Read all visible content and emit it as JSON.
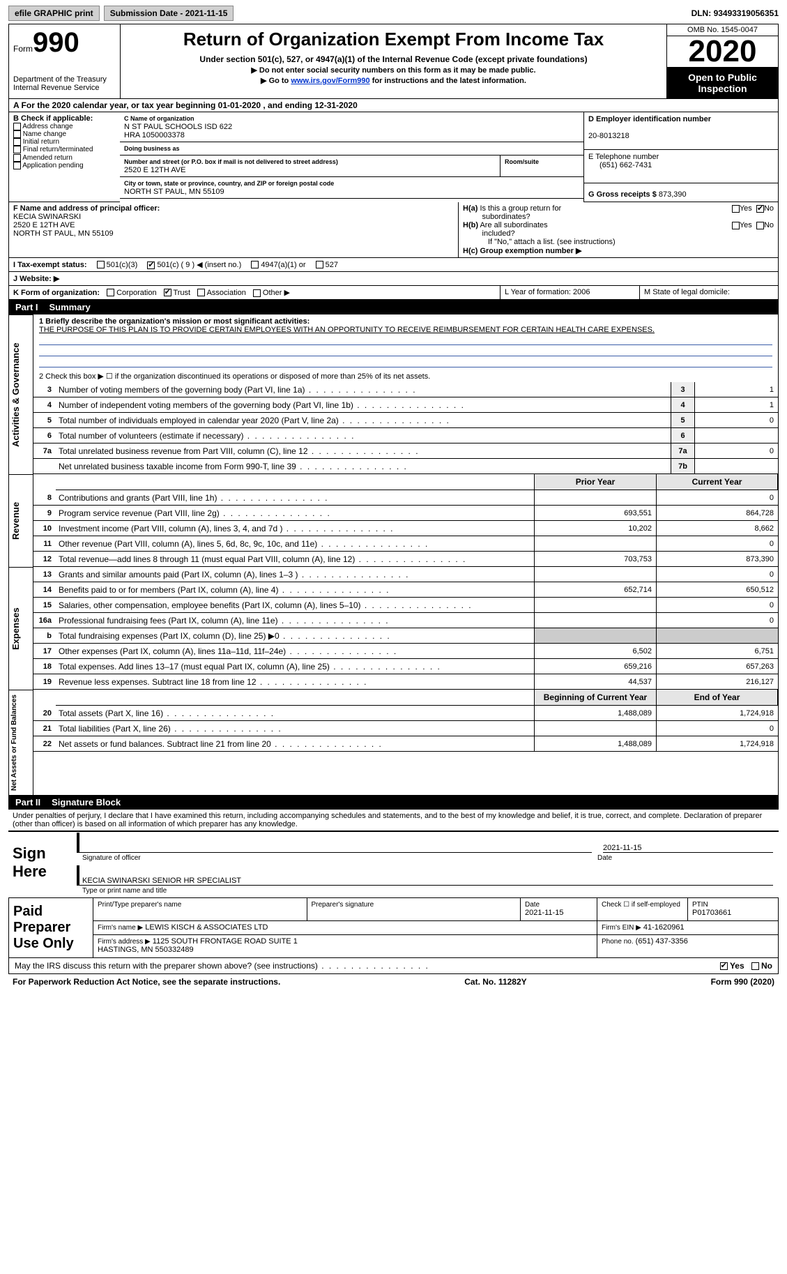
{
  "top": {
    "efile": "efile GRAPHIC print",
    "subdate_lbl": "Submission Date - ",
    "subdate": "2021-11-15",
    "dln_lbl": "DLN: ",
    "dln": "93493319056351"
  },
  "hdr": {
    "form": "Form",
    "num": "990",
    "dept": "Department of the Treasury\nInternal Revenue Service",
    "title": "Return of Organization Exempt From Income Tax",
    "sub": "Under section 501(c), 527, or 4947(a)(1) of the Internal Revenue Code (except private foundations)",
    "note1": "▶ Do not enter social security numbers on this form as it may be made public.",
    "note2_pre": "▶ Go to ",
    "note2_link": "www.irs.gov/Form990",
    "note2_post": " for instructions and the latest information.",
    "omb": "OMB No. 1545-0047",
    "year": "2020",
    "pub": "Open to Public Inspection"
  },
  "rowA": "A For the 2020 calendar year, or tax year beginning 01-01-2020    , and ending 12-31-2020",
  "boxB": {
    "label": "B Check if applicable:",
    "items": [
      "Address change",
      "Name change",
      "Initial return",
      "Final return/terminated",
      "Amended return",
      "Application pending"
    ]
  },
  "boxC": {
    "name_lbl": "C Name of organization",
    "name": "N ST PAUL SCHOOLS ISD 622\nHRA 1050003378",
    "dba_lbl": "Doing business as",
    "dba": "",
    "street_lbl": "Number and street (or P.O. box if mail is not delivered to street address)",
    "street": "2520 E 12TH AVE",
    "room_lbl": "Room/suite",
    "city_lbl": "City or town, state or province, country, and ZIP or foreign postal code",
    "city": "NORTH ST PAUL, MN  55109"
  },
  "boxDEG": {
    "d_lbl": "D Employer identification number",
    "d": "20-8013218",
    "e_lbl": "E Telephone number",
    "e": "(651) 662-7431",
    "g_lbl": "G Gross receipts $ ",
    "g": "873,390"
  },
  "rowF": {
    "f_lbl": "F  Name and address of principal officer:",
    "f": "KECIA SWINARSKI\n2520 E 12TH AVE\nNORTH ST PAUL, MN  55109",
    "ha": "H(a)  Is this a group return for subordinates?",
    "hb": "H(b)  Are all subordinates included?",
    "hb_note": "If \"No,\" attach a list. (see instructions)",
    "hc": "H(c)  Group exemption number ▶",
    "yes": "Yes",
    "no": "No"
  },
  "rowI": {
    "lbl": "I   Tax-exempt status:",
    "o1": "501(c)(3)",
    "o2": "501(c) ( 9 ) ◀ (insert no.)",
    "o3": "4947(a)(1) or",
    "o4": "527"
  },
  "rowJ": {
    "lbl": "J   Website: ▶"
  },
  "rowK": {
    "k": "K Form of organization:",
    "opts": [
      "Corporation",
      "Trust",
      "Association",
      "Other ▶"
    ],
    "l": "L Year of formation: 2006",
    "m": "M State of legal domicile:"
  },
  "partI": {
    "num": "Part I",
    "title": "Summary",
    "q1": "1  Briefly describe the organization's mission or most significant activities:",
    "q1v": "THE PURPOSE OF THIS PLAN IS TO PROVIDE CERTAIN EMPLOYEES WITH AN OPPORTUNITY TO RECEIVE REIMBURSEMENT FOR CERTAIN HEALTH CARE EXPENSES.",
    "q2": "2   Check this box ▶ ☐  if the organization discontinued its operations or disposed of more than 25% of its net assets."
  },
  "gov_lines": [
    {
      "n": "3",
      "t": "Number of voting members of the governing body (Part VI, line 1a)",
      "b": "3",
      "v": "1"
    },
    {
      "n": "4",
      "t": "Number of independent voting members of the governing body (Part VI, line 1b)",
      "b": "4",
      "v": "1"
    },
    {
      "n": "5",
      "t": "Total number of individuals employed in calendar year 2020 (Part V, line 2a)",
      "b": "5",
      "v": "0"
    },
    {
      "n": "6",
      "t": "Total number of volunteers (estimate if necessary)",
      "b": "6",
      "v": ""
    },
    {
      "n": "7a",
      "t": "Total unrelated business revenue from Part VIII, column (C), line 12",
      "b": "7a",
      "v": "0"
    },
    {
      "n": "",
      "t": "Net unrelated business taxable income from Form 990-T, line 39",
      "b": "7b",
      "v": ""
    }
  ],
  "cols": {
    "py": "Prior Year",
    "cy": "Current Year",
    "boy": "Beginning of Current Year",
    "eoy": "End of Year"
  },
  "rev_lines": [
    {
      "n": "8",
      "t": "Contributions and grants (Part VIII, line 1h)",
      "py": "",
      "cy": "0"
    },
    {
      "n": "9",
      "t": "Program service revenue (Part VIII, line 2g)",
      "py": "693,551",
      "cy": "864,728"
    },
    {
      "n": "10",
      "t": "Investment income (Part VIII, column (A), lines 3, 4, and 7d )",
      "py": "10,202",
      "cy": "8,662"
    },
    {
      "n": "11",
      "t": "Other revenue (Part VIII, column (A), lines 5, 6d, 8c, 9c, 10c, and 11e)",
      "py": "",
      "cy": "0"
    },
    {
      "n": "12",
      "t": "Total revenue—add lines 8 through 11 (must equal Part VIII, column (A), line 12)",
      "py": "703,753",
      "cy": "873,390"
    }
  ],
  "exp_lines": [
    {
      "n": "13",
      "t": "Grants and similar amounts paid (Part IX, column (A), lines 1–3 )",
      "py": "",
      "cy": "0"
    },
    {
      "n": "14",
      "t": "Benefits paid to or for members (Part IX, column (A), line 4)",
      "py": "652,714",
      "cy": "650,512"
    },
    {
      "n": "15",
      "t": "Salaries, other compensation, employee benefits (Part IX, column (A), lines 5–10)",
      "py": "",
      "cy": "0"
    },
    {
      "n": "16a",
      "t": "Professional fundraising fees (Part IX, column (A), line 11e)",
      "py": "",
      "cy": "0"
    },
    {
      "n": "b",
      "t": "Total fundraising expenses (Part IX, column (D), line 25) ▶0",
      "py": "shade",
      "cy": "shade"
    },
    {
      "n": "17",
      "t": "Other expenses (Part IX, column (A), lines 11a–11d, 11f–24e)",
      "py": "6,502",
      "cy": "6,751"
    },
    {
      "n": "18",
      "t": "Total expenses. Add lines 13–17 (must equal Part IX, column (A), line 25)",
      "py": "659,216",
      "cy": "657,263"
    },
    {
      "n": "19",
      "t": "Revenue less expenses. Subtract line 18 from line 12",
      "py": "44,537",
      "cy": "216,127"
    }
  ],
  "na_lines": [
    {
      "n": "20",
      "t": "Total assets (Part X, line 16)",
      "py": "1,488,089",
      "cy": "1,724,918"
    },
    {
      "n": "21",
      "t": "Total liabilities (Part X, line 26)",
      "py": "",
      "cy": "0"
    },
    {
      "n": "22",
      "t": "Net assets or fund balances. Subtract line 21 from line 20",
      "py": "1,488,089",
      "cy": "1,724,918"
    }
  ],
  "partII": {
    "num": "Part II",
    "title": "Signature Block",
    "decl": "Under penalties of perjury, I declare that I have examined this return, including accompanying schedules and statements, and to the best of my knowledge and belief, it is true, correct, and complete. Declaration of preparer (other than officer) is based on all information of which preparer has any knowledge."
  },
  "sign": {
    "here": "Sign Here",
    "so": "Signature of officer",
    "dt": "Date",
    "dtv": "2021-11-15",
    "nm": "KECIA SWINARSKI  SENIOR HR SPECIALIST",
    "nm_lbl": "Type or print name and title"
  },
  "prep": {
    "lbl": "Paid Preparer Use Only",
    "h": [
      "Print/Type preparer's name",
      "Preparer's signature",
      "Date",
      "Check ☐ if self-employed",
      "PTIN"
    ],
    "r1": [
      "",
      "",
      "2021-11-15",
      "",
      "P01703661"
    ],
    "firm_lbl": "Firm's name   ▶",
    "firm": "LEWIS KISCH & ASSOCIATES LTD",
    "ein_lbl": "Firm's EIN ▶",
    "ein": "41-1620961",
    "addr_lbl": "Firm's address ▶",
    "addr": "1125 SOUTH FRONTAGE ROAD SUITE 1\n                    HASTINGS, MN  550332489",
    "ph_lbl": "Phone no.",
    "ph": "(651) 437-3356",
    "discuss": "May the IRS discuss this return with the preparer shown above? (see instructions)",
    "yes": "Yes",
    "no": "No"
  },
  "footer": {
    "pra": "For Paperwork Reduction Act Notice, see the separate instructions.",
    "cat": "Cat. No. 11282Y",
    "form": "Form 990 (2020)"
  },
  "vert": {
    "gov": "Activities & Governance",
    "rev": "Revenue",
    "exp": "Expenses",
    "na": "Net Assets or Fund Balances"
  }
}
